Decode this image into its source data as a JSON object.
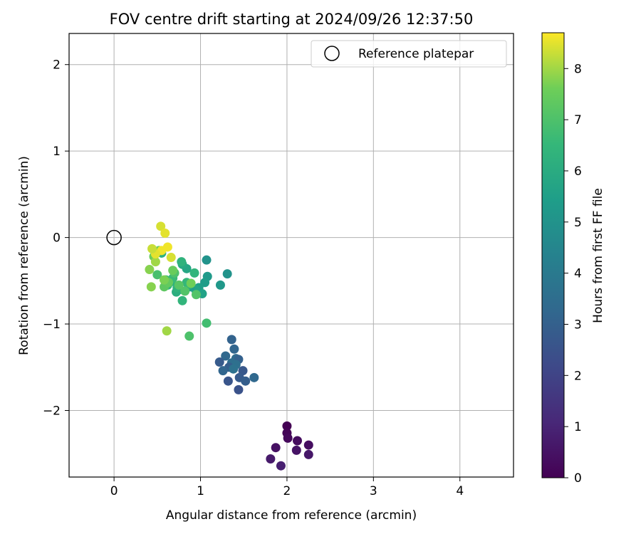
{
  "chart_data": {
    "type": "scatter",
    "title": "FOV centre drift starting at 2024/09/26 12:37:50",
    "xlabel": "Angular distance from reference (arcmin)",
    "ylabel": "Rotation from reference (arcmin)",
    "xlim": [
      -0.52,
      4.62
    ],
    "ylim": [
      -2.77,
      2.36
    ],
    "xticks": [
      0,
      1,
      2,
      3,
      4
    ],
    "yticks": [
      -2,
      -1,
      0,
      1,
      2
    ],
    "xtick_labels": [
      "0",
      "1",
      "2",
      "3",
      "4"
    ],
    "ytick_labels": [
      "−2",
      "−1",
      "0",
      "1",
      "2"
    ],
    "grid": true,
    "legend": {
      "placement": "top-right",
      "entries": [
        "Reference platepar"
      ]
    },
    "colorbar": {
      "label": "Hours from first FF file",
      "range": [
        0,
        8.7
      ],
      "ticks": [
        0,
        1,
        2,
        3,
        4,
        5,
        6,
        7,
        8
      ],
      "tick_labels": [
        "0",
        "1",
        "2",
        "3",
        "4",
        "5",
        "6",
        "7",
        "8"
      ],
      "colormap": "viridis"
    },
    "reference_point": {
      "name": "Reference platepar",
      "x": 0,
      "y": 0
    },
    "series": [
      {
        "x": [
          2.0,
          2.0,
          2.01,
          2.12,
          2.25,
          1.87,
          2.11,
          2.25,
          1.81,
          1.93,
          1.36,
          1.39,
          1.29,
          1.41,
          1.44,
          1.36,
          1.41,
          1.22,
          1.33,
          1.38,
          1.49,
          1.26,
          1.45,
          1.52,
          1.62,
          1.32,
          1.44,
          1.07,
          1.31,
          1.23,
          1.08,
          1.05,
          0.98,
          1.02,
          0.94,
          0.88,
          0.84,
          0.79,
          0.86,
          0.76,
          0.72,
          0.66,
          0.78,
          0.93,
          0.84,
          0.73,
          0.68,
          0.79,
          0.62,
          0.6,
          0.55,
          1.07,
          0.87,
          0.7,
          0.82,
          0.75,
          0.58,
          0.5,
          0.95,
          0.68,
          0.63,
          0.46,
          0.52,
          0.41,
          0.58,
          0.48,
          0.89,
          0.61,
          0.43,
          0.54,
          0.59,
          0.62,
          0.55,
          0.48,
          0.44,
          0.66
        ],
        "y": [
          -2.18,
          -2.26,
          -2.32,
          -2.35,
          -2.4,
          -2.43,
          -2.46,
          -2.51,
          -2.56,
          -2.64,
          -1.18,
          -1.29,
          -1.37,
          -1.4,
          -1.41,
          -1.45,
          -1.47,
          -1.44,
          -1.5,
          -1.52,
          -1.54,
          -1.54,
          -1.62,
          -1.66,
          -1.62,
          -1.66,
          -1.76,
          -0.26,
          -0.42,
          -0.55,
          -0.45,
          -0.52,
          -0.58,
          -0.65,
          -0.6,
          -0.57,
          -0.36,
          -0.31,
          -0.55,
          -0.6,
          -0.63,
          -0.51,
          -0.28,
          -0.41,
          -0.52,
          -0.58,
          -0.47,
          -0.73,
          -0.55,
          -0.49,
          -0.18,
          -0.99,
          -1.14,
          -0.41,
          -0.62,
          -0.55,
          -0.57,
          -0.43,
          -0.66,
          -0.38,
          -0.52,
          -0.22,
          -0.15,
          -0.37,
          -0.49,
          -0.28,
          -0.53,
          -1.08,
          -0.57,
          0.13,
          0.05,
          -0.11,
          -0.15,
          -0.19,
          -0.13,
          -0.23
        ],
        "hours": [
          0.0,
          0.1,
          0.2,
          0.3,
          0.35,
          0.45,
          0.5,
          0.6,
          0.7,
          0.85,
          3.1,
          3.2,
          3.3,
          3.4,
          3.0,
          3.5,
          3.6,
          2.8,
          2.9,
          3.7,
          2.7,
          3.2,
          2.8,
          2.9,
          3.3,
          2.6,
          2.5,
          5.0,
          5.0,
          5.2,
          5.3,
          5.4,
          5.5,
          5.6,
          5.7,
          5.5,
          5.8,
          5.9,
          6.0,
          5.8,
          6.1,
          6.2,
          6.3,
          6.4,
          6.5,
          6.3,
          6.6,
          6.4,
          6.5,
          6.6,
          6.2,
          6.8,
          7.0,
          7.0,
          7.1,
          7.2,
          7.3,
          6.9,
          7.1,
          7.5,
          7.4,
          7.5,
          7.6,
          7.8,
          7.7,
          8.0,
          7.6,
          8.0,
          7.8,
          8.4,
          8.5,
          8.6,
          8.6,
          8.5,
          8.3,
          8.4
        ]
      }
    ]
  }
}
